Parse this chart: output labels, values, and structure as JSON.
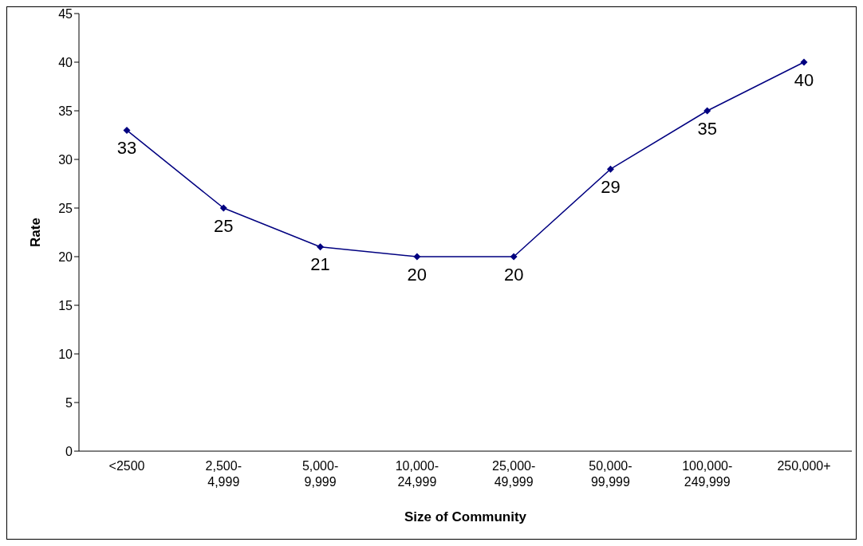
{
  "chart_data": {
    "type": "line",
    "xlabel": "Size of Community",
    "ylabel": "Rate",
    "categories": [
      "<2500",
      "2,500-4,999",
      "5,000-9,999",
      "10,000-24,999",
      "25,000-49,999",
      "50,000-99,999",
      "100,000-249,999",
      "250,000+"
    ],
    "series": [
      {
        "color": "#000080",
        "values": [
          33,
          25,
          21,
          20,
          20,
          29,
          35,
          40
        ]
      }
    ],
    "ylim": [
      0,
      45
    ],
    "yticks": [
      0,
      5,
      10,
      15,
      20,
      25,
      30,
      35,
      40,
      45
    ],
    "marker": "diamond",
    "line_style": "solid",
    "data_labels": true
  }
}
